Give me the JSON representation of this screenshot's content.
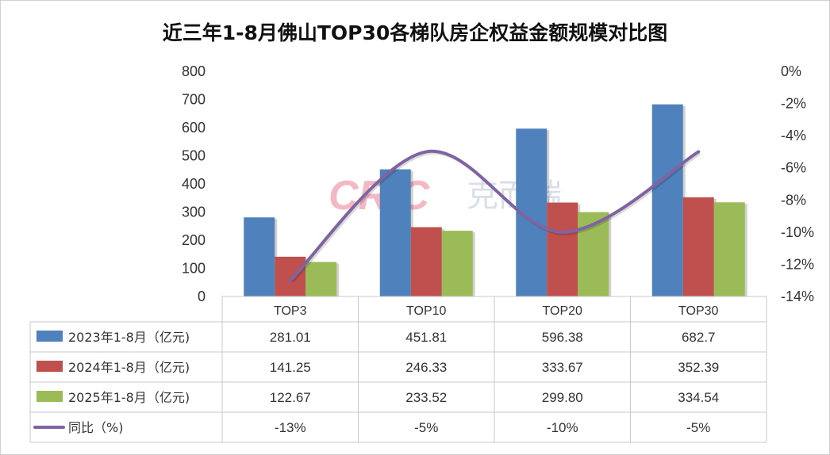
{
  "chart_data": {
    "type": "bar",
    "title": "近三年1-8月佛山TOP30各梯队房企权益金额规模对比图",
    "categories": [
      "TOP3",
      "TOP10",
      "TOP20",
      "TOP30"
    ],
    "series": [
      {
        "name": "2023年1-8月（亿元)",
        "type": "bar",
        "axis": "left",
        "color": "#4F81BD",
        "values": [
          281.01,
          451.81,
          596.38,
          682.7
        ],
        "labels": [
          "281.01",
          "451.81",
          "596.38",
          "682.7"
        ]
      },
      {
        "name": "2024年1-8月（亿元)",
        "type": "bar",
        "axis": "left",
        "color": "#C0504D",
        "values": [
          141.25,
          246.33,
          333.67,
          352.39
        ],
        "labels": [
          "141.25",
          "246.33",
          "333.67",
          "352.39"
        ]
      },
      {
        "name": "2025年1-8月（亿元)",
        "type": "bar",
        "axis": "left",
        "color": "#9BBB59",
        "values": [
          122.67,
          233.52,
          299.8,
          334.54
        ],
        "labels": [
          "122.67",
          "233.52",
          "299.80",
          "334.54"
        ]
      },
      {
        "name": "同比（%)",
        "type": "line",
        "axis": "right",
        "color": "#8064A2",
        "values": [
          -13,
          -5,
          -10,
          -5
        ],
        "labels": [
          "-13%",
          "-5%",
          "-10%",
          "-5%"
        ]
      }
    ],
    "ylim_left": [
      0,
      800
    ],
    "yticks_left": [
      "0",
      "100",
      "200",
      "300",
      "400",
      "500",
      "600",
      "700",
      "800"
    ],
    "ylim_right": [
      -14,
      0
    ],
    "yticks_right": [
      "0%",
      "-2%",
      "-4%",
      "-6%",
      "-8%",
      "-10%",
      "-12%",
      "-14%"
    ],
    "legend": "data-table",
    "grid": false
  },
  "watermark": {
    "latin": "CRIC",
    "chinese": "克而瑞"
  }
}
